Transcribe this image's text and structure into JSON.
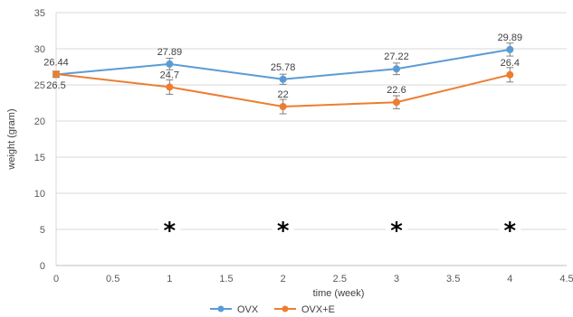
{
  "chart_data": {
    "type": "line",
    "title": "",
    "xlabel": "time (week)",
    "ylabel": "weight (gram)",
    "xlim": [
      0,
      4.5
    ],
    "ylim": [
      0,
      35
    ],
    "x_ticks": [
      "0",
      "0.5",
      "1",
      "1.5",
      "2",
      "2.5",
      "3",
      "3.5",
      "4",
      "4.5"
    ],
    "y_ticks": [
      "0",
      "5",
      "10",
      "15",
      "20",
      "25",
      "30",
      "35"
    ],
    "grid": "horizontal",
    "legend_position": "bottom",
    "x": [
      0,
      1,
      2,
      3,
      4
    ],
    "series": [
      {
        "name": "OVX",
        "color": "#5b9bd5",
        "values": [
          26.44,
          27.89,
          25.78,
          27.22,
          29.89
        ],
        "labels": [
          "26.44",
          "27.89",
          "25.78",
          "27.22",
          "29.89"
        ],
        "error": [
          0.4,
          0.8,
          0.7,
          0.8,
          0.9
        ]
      },
      {
        "name": "OVX+E",
        "color": "#ed7d31",
        "values": [
          26.5,
          24.7,
          22,
          22.6,
          26.4
        ],
        "labels": [
          "26.5",
          "24.7",
          "22",
          "22.6",
          "26.4"
        ],
        "error": [
          0.4,
          1.0,
          1.0,
          0.9,
          1.0
        ]
      }
    ],
    "annotations": [
      {
        "x": 1,
        "y": 5.5,
        "text": "*"
      },
      {
        "x": 2,
        "y": 5.5,
        "text": "*"
      },
      {
        "x": 3,
        "y": 5.5,
        "text": "*"
      },
      {
        "x": 4,
        "y": 5.5,
        "text": "*"
      }
    ]
  }
}
